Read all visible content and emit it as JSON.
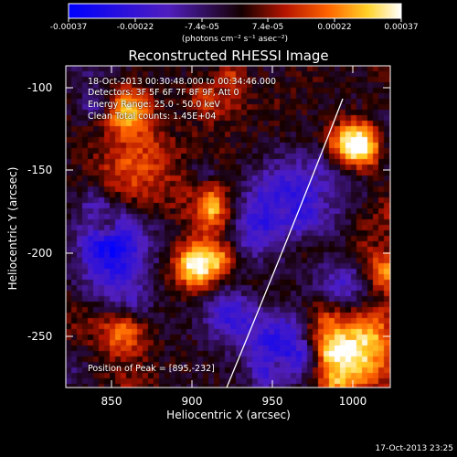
{
  "colorbar": {
    "ticks": [
      "-0.00037",
      "-0.00022",
      "-7.4e-05",
      "7.4e-05",
      "0.00022",
      "0.00037"
    ],
    "units": "(photons cm⁻² s⁻¹ asec⁻²)"
  },
  "title": "Reconstructed RHESSI Image",
  "info": {
    "time": "18-Oct-2013 00:30:48.000 to 00:34:46.000",
    "detectors": "Detectors: 3F 5F 6F 7F 8F 9F, Att 0",
    "energy": "Energy Range: 25.0 - 50.0 keV",
    "method": "Clean     Total counts: 1.45E+04"
  },
  "peak": "Position of Peak = [895,-232]",
  "axes": {
    "xlabel": "Heliocentric X (arcsec)",
    "ylabel": "Heliocentric Y (arcsec)",
    "xticks": [
      "850",
      "900",
      "950",
      "1000"
    ],
    "yticks": [
      "-100",
      "-150",
      "-200",
      "-250"
    ]
  },
  "timestamp": "17-Oct-2013 23:25"
}
